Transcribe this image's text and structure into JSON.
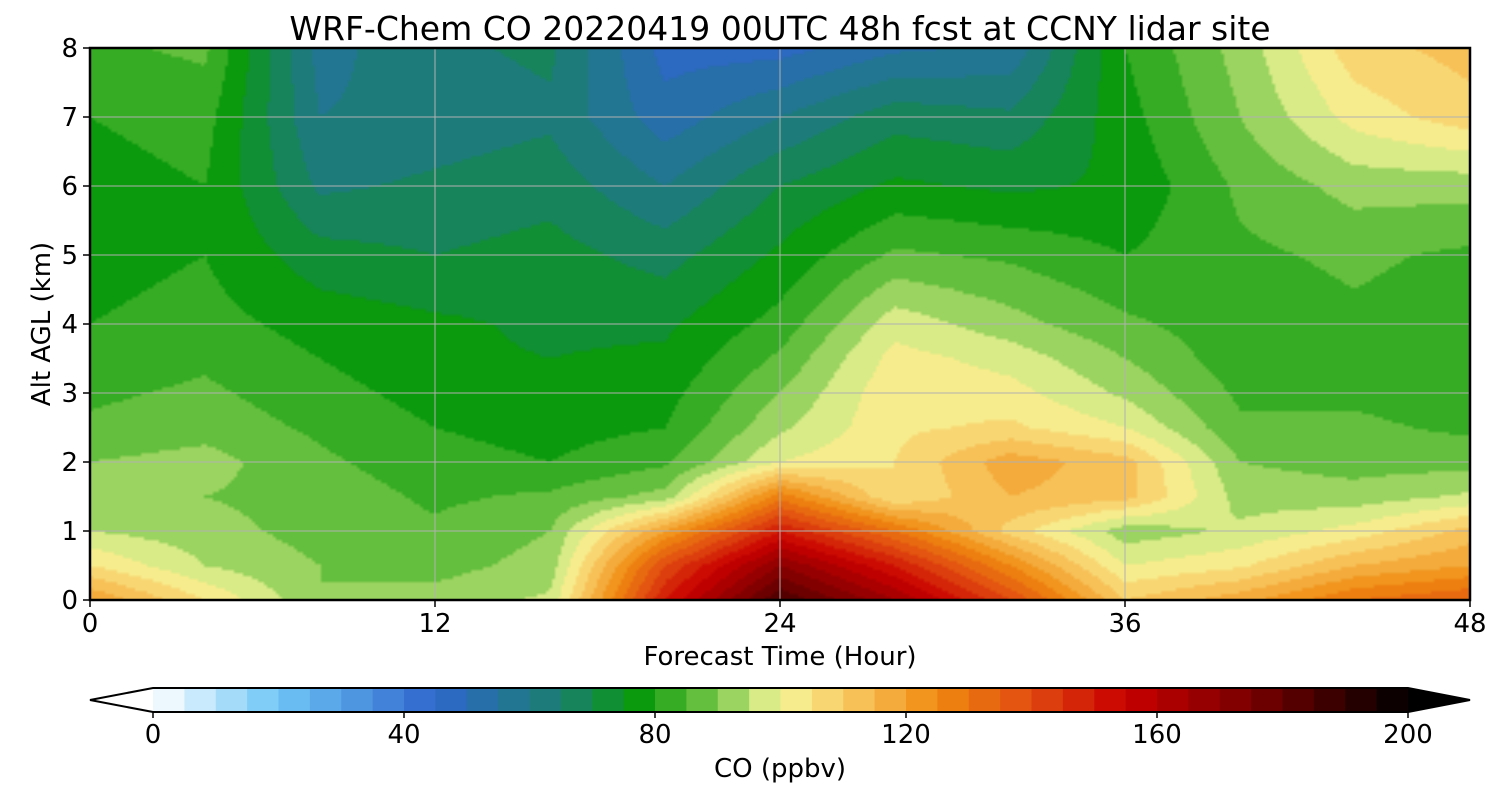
{
  "chart_data": {
    "type": "heatmap",
    "title": "WRF-Chem CO  20220419 00UTC 48h fcst at CCNY lidar site",
    "xlabel": "Forecast Time (Hour)",
    "ylabel": "Alt AGL (km)",
    "xlim": [
      0,
      48
    ],
    "ylim": [
      0,
      8
    ],
    "xticks": [
      0,
      12,
      24,
      36,
      48
    ],
    "yticks": [
      0,
      1,
      2,
      3,
      4,
      5,
      6,
      7,
      8
    ],
    "grid": true,
    "grid_x": [
      0,
      4,
      8,
      12,
      16,
      20,
      24,
      28,
      32,
      36,
      40,
      44,
      48
    ],
    "grid_y": [
      0,
      0.5,
      1,
      1.5,
      2,
      2.5,
      3,
      3.5,
      4,
      5,
      6,
      7,
      8
    ],
    "values": [
      [
        120,
        105,
        90,
        92,
        96,
        150,
        185,
        165,
        140,
        110,
        118,
        130,
        135
      ],
      [
        105,
        95,
        90,
        88,
        92,
        140,
        170,
        150,
        125,
        100,
        104,
        115,
        120
      ],
      [
        95,
        92,
        88,
        86,
        90,
        120,
        150,
        130,
        108,
        92,
        96,
        102,
        112
      ],
      [
        92,
        90,
        88,
        84,
        86,
        92,
        128,
        105,
        115,
        112,
        93,
        92,
        96
      ],
      [
        90,
        92,
        86,
        82,
        80,
        84,
        100,
        105,
        118,
        112,
        90,
        88,
        88
      ],
      [
        86,
        88,
        84,
        80,
        78,
        80,
        94,
        104,
        106,
        100,
        86,
        86,
        84
      ],
      [
        84,
        86,
        82,
        78,
        76,
        78,
        90,
        104,
        102,
        94,
        84,
        84,
        82
      ],
      [
        82,
        84,
        80,
        76,
        75,
        76,
        86,
        102,
        98,
        90,
        82,
        82,
        80
      ],
      [
        80,
        82,
        78,
        76,
        74,
        74,
        82,
        98,
        92,
        86,
        82,
        84,
        82
      ],
      [
        78,
        80,
        72,
        70,
        72,
        68,
        76,
        86,
        84,
        80,
        84,
        86,
        84
      ],
      [
        78,
        80,
        64,
        66,
        68,
        60,
        70,
        76,
        74,
        76,
        86,
        92,
        92
      ],
      [
        80,
        82,
        60,
        62,
        64,
        52,
        60,
        68,
        66,
        78,
        90,
        102,
        108
      ],
      [
        84,
        86,
        58,
        64,
        66,
        48,
        48,
        54,
        56,
        80,
        92,
        108,
        112
      ]
    ],
    "colorbar": {
      "label": "CO  (ppbv)",
      "min": 0,
      "max": 200,
      "ticks": [
        0,
        40,
        80,
        120,
        160,
        200
      ],
      "extend": "both",
      "stops": [
        {
          "v": 0,
          "c": "#ffffff"
        },
        {
          "v": 20,
          "c": "#6ec6f6"
        },
        {
          "v": 45,
          "c": "#2f66cc"
        },
        {
          "v": 65,
          "c": "#1a7f6e"
        },
        {
          "v": 78,
          "c": "#0a9a0a"
        },
        {
          "v": 90,
          "c": "#7cc94c"
        },
        {
          "v": 100,
          "c": "#f6f69a"
        },
        {
          "v": 110,
          "c": "#f8cc66"
        },
        {
          "v": 125,
          "c": "#f08a10"
        },
        {
          "v": 140,
          "c": "#e04a10"
        },
        {
          "v": 155,
          "c": "#c80000"
        },
        {
          "v": 175,
          "c": "#780000"
        },
        {
          "v": 200,
          "c": "#000000"
        }
      ]
    }
  }
}
